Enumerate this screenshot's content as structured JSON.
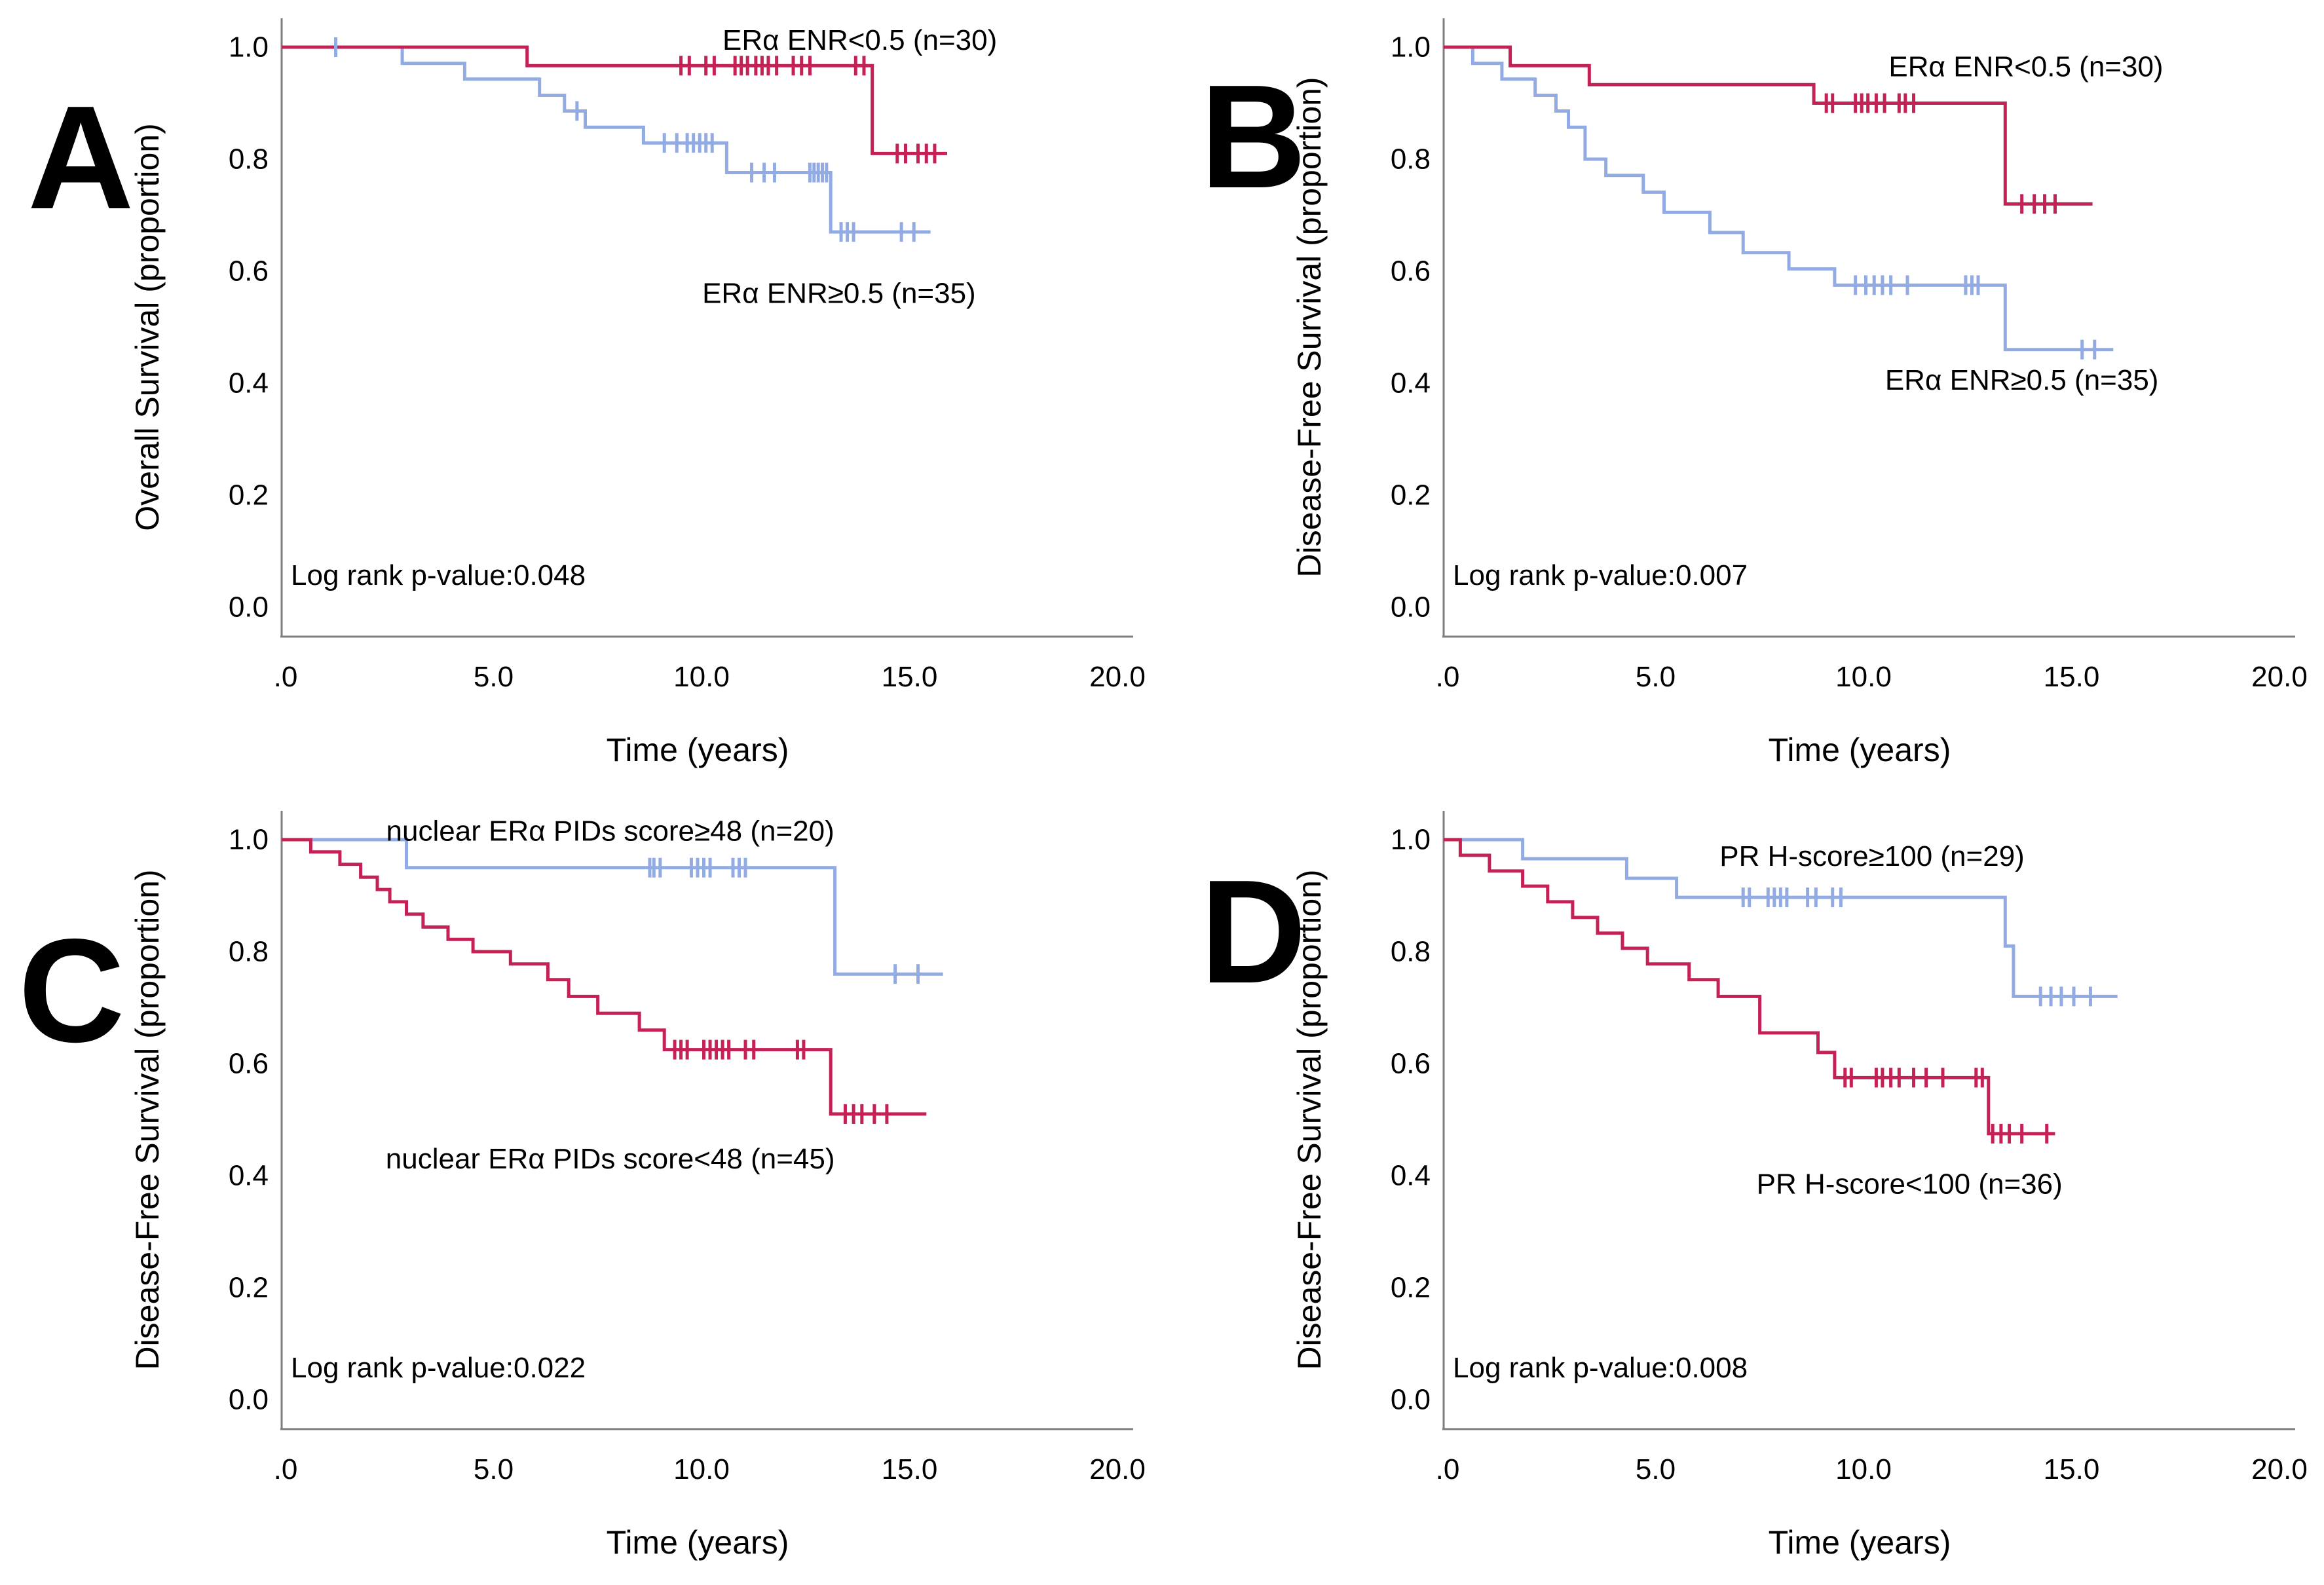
{
  "figure": {
    "background": "#ffffff",
    "axis_color": "#7d7d7d",
    "text_color": "#000000",
    "group_colors": {
      "red": "#C42155",
      "blue": "#92ABE2"
    }
  },
  "chart_data": [
    {
      "type": "line",
      "subtype": "kaplan-meier-step",
      "panel_label": "A",
      "title": "",
      "xlabel": "Time (years)",
      "ylabel": "Overall Survival (proportion)",
      "xlim": [
        0,
        20
      ],
      "ylim": [
        0,
        1.0
      ],
      "grid": false,
      "legend_position": "inline-annotations",
      "xticks": {
        "values": [
          0,
          5,
          10,
          15,
          20
        ],
        "labels": [
          ".0",
          "5.0",
          "10.0",
          "15.0",
          "20.0"
        ]
      },
      "yticks": {
        "values": [
          1.0,
          0.8,
          0.6,
          0.4,
          0.2,
          0.0
        ],
        "labels": [
          "1.0",
          "0.8",
          "0.6",
          "0.4",
          "0.2",
          "0.0"
        ]
      },
      "annotation": "Log rank p-value:0.048",
      "series": [
        {
          "name": "ERα ENR≥0.5 (n=35)",
          "color": "#92ABE2",
          "start_y": 1.0,
          "steps": [
            [
              2.9,
              0.971
            ],
            [
              4.4,
              0.943
            ],
            [
              6.2,
              0.914
            ],
            [
              6.8,
              0.886
            ],
            [
              7.3,
              0.857
            ],
            [
              8.7,
              0.829
            ],
            [
              10.7,
              0.776
            ],
            [
              13.2,
              0.67
            ]
          ],
          "end_x": 15.6,
          "censors": [
            [
              1.3,
              1.0
            ],
            [
              7.1,
              0.886
            ],
            [
              9.2,
              0.829
            ],
            [
              9.5,
              0.829
            ],
            [
              9.75,
              0.829
            ],
            [
              9.9,
              0.829
            ],
            [
              10.05,
              0.829
            ],
            [
              10.2,
              0.829
            ],
            [
              10.35,
              0.829
            ],
            [
              11.3,
              0.776
            ],
            [
              11.6,
              0.776
            ],
            [
              11.85,
              0.776
            ],
            [
              12.7,
              0.776
            ],
            [
              12.8,
              0.776
            ],
            [
              12.9,
              0.776
            ],
            [
              13.0,
              0.776
            ],
            [
              13.1,
              0.776
            ],
            [
              13.45,
              0.67
            ],
            [
              13.6,
              0.67
            ],
            [
              13.75,
              0.67
            ],
            [
              14.9,
              0.67
            ],
            [
              15.2,
              0.67
            ]
          ],
          "label": {
            "x": 13.4,
            "y": 0.56
          }
        },
        {
          "name": "ERα ENR<0.5 (n=30)",
          "color": "#C42155",
          "start_y": 1.0,
          "steps": [
            [
              5.9,
              0.967
            ],
            [
              14.2,
              0.81
            ]
          ],
          "end_x": 16.0,
          "censors": [
            [
              9.6,
              0.967
            ],
            [
              9.8,
              0.967
            ],
            [
              10.2,
              0.967
            ],
            [
              10.4,
              0.967
            ],
            [
              10.9,
              0.967
            ],
            [
              11.05,
              0.967
            ],
            [
              11.2,
              0.967
            ],
            [
              11.4,
              0.967
            ],
            [
              11.55,
              0.967
            ],
            [
              11.7,
              0.967
            ],
            [
              11.9,
              0.967
            ],
            [
              12.3,
              0.967
            ],
            [
              12.5,
              0.967
            ],
            [
              12.7,
              0.967
            ],
            [
              13.8,
              0.967
            ],
            [
              14.0,
              0.967
            ],
            [
              14.8,
              0.81
            ],
            [
              15.0,
              0.81
            ],
            [
              15.3,
              0.81
            ],
            [
              15.5,
              0.81
            ],
            [
              15.7,
              0.81
            ]
          ],
          "label": {
            "x": 13.9,
            "y": 1.012
          }
        }
      ]
    },
    {
      "type": "line",
      "subtype": "kaplan-meier-step",
      "panel_label": "B",
      "title": "",
      "xlabel": "Time (years)",
      "ylabel": "Disease-Free Survival (proportion)",
      "xlim": [
        0,
        20
      ],
      "ylim": [
        0,
        1.0
      ],
      "grid": false,
      "legend_position": "inline-annotations",
      "xticks": {
        "values": [
          0,
          5,
          10,
          15,
          20
        ],
        "labels": [
          ".0",
          "5.0",
          "10.0",
          "15.0",
          "20.0"
        ]
      },
      "yticks": {
        "values": [
          1.0,
          0.8,
          0.6,
          0.4,
          0.2,
          0.0
        ],
        "labels": [
          "1.0",
          "0.8",
          "0.6",
          "0.4",
          "0.2",
          "0.0"
        ]
      },
      "annotation": "Log rank p-value:0.007",
      "series": [
        {
          "name": "ERα ENR≥0.5 (n=35)",
          "color": "#92ABE2",
          "start_y": 1.0,
          "steps": [
            [
              0.7,
              0.971
            ],
            [
              1.4,
              0.943
            ],
            [
              2.2,
              0.914
            ],
            [
              2.7,
              0.886
            ],
            [
              3.0,
              0.857
            ],
            [
              3.4,
              0.8
            ],
            [
              3.9,
              0.771
            ],
            [
              4.8,
              0.741
            ],
            [
              5.3,
              0.705
            ],
            [
              6.4,
              0.669
            ],
            [
              7.2,
              0.633
            ],
            [
              8.3,
              0.604
            ],
            [
              9.4,
              0.575
            ],
            [
              13.5,
              0.46
            ]
          ],
          "end_x": 16.1,
          "censors": [
            [
              9.9,
              0.575
            ],
            [
              10.15,
              0.575
            ],
            [
              10.35,
              0.575
            ],
            [
              10.55,
              0.575
            ],
            [
              10.75,
              0.575
            ],
            [
              11.15,
              0.575
            ],
            [
              12.55,
              0.575
            ],
            [
              12.7,
              0.575
            ],
            [
              12.85,
              0.575
            ],
            [
              15.35,
              0.46
            ],
            [
              15.65,
              0.46
            ]
          ],
          "label": {
            "x": 13.9,
            "y": 0.405
          }
        },
        {
          "name": "ERα ENR<0.5 (n=30)",
          "color": "#C42155",
          "start_y": 1.0,
          "steps": [
            [
              1.6,
              0.967
            ],
            [
              3.5,
              0.933
            ],
            [
              8.9,
              0.9
            ],
            [
              13.5,
              0.72
            ]
          ],
          "end_x": 15.6,
          "censors": [
            [
              9.2,
              0.9
            ],
            [
              9.35,
              0.9
            ],
            [
              9.9,
              0.9
            ],
            [
              10.05,
              0.9
            ],
            [
              10.2,
              0.9
            ],
            [
              10.4,
              0.9
            ],
            [
              10.6,
              0.9
            ],
            [
              10.95,
              0.9
            ],
            [
              11.1,
              0.9
            ],
            [
              11.3,
              0.9
            ],
            [
              13.9,
              0.72
            ],
            [
              14.2,
              0.72
            ],
            [
              14.45,
              0.72
            ],
            [
              14.7,
              0.72
            ]
          ],
          "label": {
            "x": 14.0,
            "y": 0.965
          }
        }
      ]
    },
    {
      "type": "line",
      "subtype": "kaplan-meier-step",
      "panel_label": "C",
      "title": "",
      "xlabel": "Time (years)",
      "ylabel": "Disease-Free Survival (proportion)",
      "xlim": [
        0,
        20
      ],
      "ylim": [
        0,
        1.0
      ],
      "grid": false,
      "legend_position": "inline-annotations",
      "xticks": {
        "values": [
          0,
          5,
          10,
          15,
          20
        ],
        "labels": [
          ".0",
          "5.0",
          "10.0",
          "15.0",
          "20.0"
        ]
      },
      "yticks": {
        "values": [
          1.0,
          0.8,
          0.6,
          0.4,
          0.2,
          0.0
        ],
        "labels": [
          "1.0",
          "0.8",
          "0.6",
          "0.4",
          "0.2",
          "0.0"
        ]
      },
      "annotation": "Log rank p-value:0.022",
      "series": [
        {
          "name": "nuclear ERα PIDs score≥48 (n=20)",
          "color": "#92ABE2",
          "start_y": 1.0,
          "steps": [
            [
              3.0,
              0.95
            ],
            [
              13.3,
              0.76
            ]
          ],
          "end_x": 15.9,
          "censors": [
            [
              8.85,
              0.95
            ],
            [
              8.95,
              0.95
            ],
            [
              9.1,
              0.95
            ],
            [
              9.85,
              0.95
            ],
            [
              10.0,
              0.95
            ],
            [
              10.15,
              0.95
            ],
            [
              10.3,
              0.95
            ],
            [
              10.85,
              0.95
            ],
            [
              11.0,
              0.95
            ],
            [
              11.15,
              0.95
            ],
            [
              14.75,
              0.76
            ],
            [
              15.3,
              0.76
            ]
          ],
          "label": {
            "x": 7.9,
            "y": 1.015
          }
        },
        {
          "name": "nuclear ERα PIDs score<48 (n=45)",
          "color": "#C42155",
          "start_y": 1.0,
          "steps": [
            [
              0.7,
              0.978
            ],
            [
              1.4,
              0.956
            ],
            [
              1.9,
              0.933
            ],
            [
              2.3,
              0.911
            ],
            [
              2.6,
              0.889
            ],
            [
              3.0,
              0.867
            ],
            [
              3.4,
              0.844
            ],
            [
              4.0,
              0.822
            ],
            [
              4.6,
              0.8
            ],
            [
              5.5,
              0.778
            ],
            [
              6.4,
              0.75
            ],
            [
              6.9,
              0.72
            ],
            [
              7.6,
              0.69
            ],
            [
              8.6,
              0.66
            ],
            [
              9.2,
              0.625
            ],
            [
              13.2,
              0.51
            ]
          ],
          "end_x": 15.5,
          "censors": [
            [
              9.45,
              0.625
            ],
            [
              9.6,
              0.625
            ],
            [
              9.75,
              0.625
            ],
            [
              10.15,
              0.625
            ],
            [
              10.3,
              0.625
            ],
            [
              10.45,
              0.625
            ],
            [
              10.6,
              0.625
            ],
            [
              10.75,
              0.625
            ],
            [
              11.15,
              0.625
            ],
            [
              11.35,
              0.625
            ],
            [
              12.4,
              0.625
            ],
            [
              12.55,
              0.625
            ],
            [
              13.55,
              0.51
            ],
            [
              13.75,
              0.51
            ],
            [
              13.95,
              0.51
            ],
            [
              14.25,
              0.51
            ],
            [
              14.55,
              0.51
            ]
          ],
          "label": {
            "x": 7.9,
            "y": 0.43
          }
        }
      ]
    },
    {
      "type": "line",
      "subtype": "kaplan-meier-step",
      "panel_label": "D",
      "title": "",
      "xlabel": "Time (years)",
      "ylabel": "Disease-Free Survival (proportion)",
      "xlim": [
        0,
        20
      ],
      "ylim": [
        0,
        1.0
      ],
      "grid": false,
      "legend_position": "inline-annotations",
      "xticks": {
        "values": [
          0,
          5,
          10,
          15,
          20
        ],
        "labels": [
          ".0",
          "5.0",
          "10.0",
          "15.0",
          "20.0"
        ]
      },
      "yticks": {
        "values": [
          1.0,
          0.8,
          0.6,
          0.4,
          0.2,
          0.0
        ],
        "labels": [
          "1.0",
          "0.8",
          "0.6",
          "0.4",
          "0.2",
          "0.0"
        ]
      },
      "annotation": "Log rank p-value:0.008",
      "series": [
        {
          "name": "PR H-score≥100 (n=29)",
          "color": "#92ABE2",
          "start_y": 1.0,
          "steps": [
            [
              1.9,
              0.966
            ],
            [
              4.4,
              0.931
            ],
            [
              5.6,
              0.897
            ],
            [
              13.5,
              0.81
            ],
            [
              13.7,
              0.72
            ]
          ],
          "end_x": 16.2,
          "censors": [
            [
              7.2,
              0.897
            ],
            [
              7.35,
              0.897
            ],
            [
              7.8,
              0.897
            ],
            [
              7.95,
              0.897
            ],
            [
              8.1,
              0.897
            ],
            [
              8.25,
              0.897
            ],
            [
              8.75,
              0.897
            ],
            [
              8.95,
              0.897
            ],
            [
              9.35,
              0.897
            ],
            [
              9.55,
              0.897
            ],
            [
              14.35,
              0.72
            ],
            [
              14.6,
              0.72
            ],
            [
              14.85,
              0.72
            ],
            [
              15.15,
              0.72
            ],
            [
              15.55,
              0.72
            ]
          ],
          "label": {
            "x": 10.3,
            "y": 0.97
          }
        },
        {
          "name": "PR H-score<100 (n=36)",
          "color": "#C42155",
          "start_y": 1.0,
          "steps": [
            [
              0.4,
              0.972
            ],
            [
              1.1,
              0.944
            ],
            [
              1.9,
              0.917
            ],
            [
              2.5,
              0.889
            ],
            [
              3.1,
              0.861
            ],
            [
              3.7,
              0.833
            ],
            [
              4.3,
              0.806
            ],
            [
              4.9,
              0.778
            ],
            [
              5.9,
              0.75
            ],
            [
              6.6,
              0.72
            ],
            [
              7.6,
              0.655
            ],
            [
              9.0,
              0.62
            ],
            [
              9.4,
              0.575
            ],
            [
              13.1,
              0.475
            ]
          ],
          "end_x": 14.7,
          "censors": [
            [
              9.65,
              0.575
            ],
            [
              9.8,
              0.575
            ],
            [
              10.4,
              0.575
            ],
            [
              10.55,
              0.575
            ],
            [
              10.75,
              0.575
            ],
            [
              10.95,
              0.575
            ],
            [
              11.3,
              0.575
            ],
            [
              11.6,
              0.575
            ],
            [
              12.0,
              0.575
            ],
            [
              12.8,
              0.575
            ],
            [
              12.95,
              0.575
            ],
            [
              13.2,
              0.475
            ],
            [
              13.4,
              0.475
            ],
            [
              13.6,
              0.475
            ],
            [
              13.9,
              0.475
            ],
            [
              14.5,
              0.475
            ]
          ],
          "label": {
            "x": 11.2,
            "y": 0.385
          }
        }
      ]
    }
  ]
}
